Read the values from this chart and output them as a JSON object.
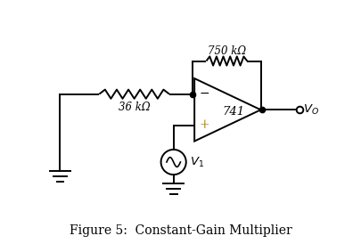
{
  "title": "Figure 5:  Constant-Gain Multiplier",
  "title_fontsize": 10,
  "line_color": "#000000",
  "lw": 1.4,
  "bg_color": "#ffffff",
  "label_36k": "36 kΩ",
  "label_750k": "750 kΩ",
  "label_741": "741",
  "label_V1": "$V_1$",
  "label_Vo": "$V_O$",
  "minus_color": "#000000",
  "plus_color": "#b8860b"
}
